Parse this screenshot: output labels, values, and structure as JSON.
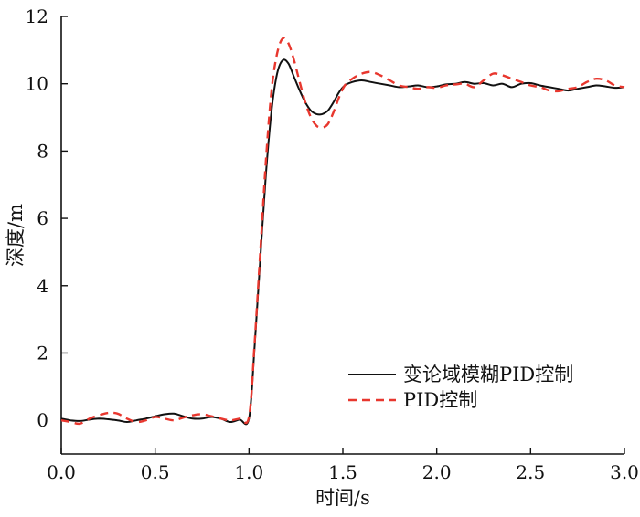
{
  "chart_data": {
    "type": "line",
    "xlabel": "时间/s",
    "ylabel": "深度/m",
    "xlim": [
      0,
      3.0
    ],
    "ylim": [
      -1,
      12
    ],
    "xticks": [
      "0.0",
      "0.5",
      "1.0",
      "1.5",
      "2.0",
      "2.5",
      "3.0"
    ],
    "yticks": [
      "0",
      "2",
      "4",
      "6",
      "8",
      "10",
      "12"
    ],
    "grid": false,
    "legend_position": "lower-right",
    "series": [
      {
        "name": "变论域模糊PID控制",
        "color": "#111111",
        "style": "solid",
        "x": [
          0.0,
          0.05,
          0.1,
          0.15,
          0.2,
          0.25,
          0.3,
          0.35,
          0.4,
          0.45,
          0.5,
          0.55,
          0.6,
          0.65,
          0.7,
          0.75,
          0.8,
          0.85,
          0.9,
          0.95,
          1.0,
          1.03,
          1.06,
          1.09,
          1.12,
          1.15,
          1.18,
          1.21,
          1.24,
          1.27,
          1.3,
          1.33,
          1.36,
          1.39,
          1.42,
          1.45,
          1.48,
          1.51,
          1.55,
          1.6,
          1.65,
          1.7,
          1.75,
          1.8,
          1.85,
          1.9,
          1.95,
          2.0,
          2.05,
          2.1,
          2.15,
          2.2,
          2.25,
          2.3,
          2.35,
          2.4,
          2.45,
          2.5,
          2.55,
          2.6,
          2.65,
          2.7,
          2.75,
          2.8,
          2.85,
          2.9,
          2.95,
          3.0
        ],
        "y": [
          0.05,
          0.0,
          -0.02,
          0.02,
          0.05,
          0.03,
          0.0,
          -0.05,
          0.0,
          0.05,
          0.12,
          0.18,
          0.2,
          0.12,
          0.05,
          0.05,
          0.1,
          0.05,
          -0.05,
          0.02,
          0.05,
          2.2,
          4.8,
          7.3,
          9.2,
          10.3,
          10.7,
          10.6,
          10.2,
          9.8,
          9.45,
          9.2,
          9.1,
          9.1,
          9.2,
          9.45,
          9.75,
          9.95,
          10.05,
          10.1,
          10.05,
          10.0,
          9.95,
          9.9,
          9.92,
          9.95,
          9.9,
          9.92,
          9.98,
          10.0,
          10.05,
          10.0,
          10.02,
          9.95,
          10.0,
          9.9,
          10.0,
          10.02,
          9.95,
          9.9,
          9.85,
          9.8,
          9.85,
          9.9,
          9.95,
          9.92,
          9.88,
          9.9
        ]
      },
      {
        "name": "PID控制",
        "color": "#e8372e",
        "style": "dashed",
        "x": [
          0.0,
          0.05,
          0.1,
          0.15,
          0.2,
          0.25,
          0.3,
          0.35,
          0.4,
          0.45,
          0.5,
          0.55,
          0.6,
          0.65,
          0.7,
          0.75,
          0.8,
          0.85,
          0.9,
          0.95,
          1.0,
          1.03,
          1.06,
          1.09,
          1.12,
          1.15,
          1.18,
          1.21,
          1.24,
          1.27,
          1.3,
          1.33,
          1.36,
          1.39,
          1.42,
          1.45,
          1.48,
          1.51,
          1.55,
          1.6,
          1.65,
          1.7,
          1.75,
          1.8,
          1.85,
          1.9,
          1.95,
          2.0,
          2.05,
          2.1,
          2.15,
          2.2,
          2.25,
          2.3,
          2.35,
          2.4,
          2.45,
          2.5,
          2.55,
          2.6,
          2.65,
          2.7,
          2.75,
          2.8,
          2.85,
          2.9,
          2.95,
          3.0
        ],
        "y": [
          0.0,
          -0.05,
          -0.1,
          0.05,
          0.15,
          0.22,
          0.2,
          0.05,
          -0.05,
          0.0,
          0.1,
          0.05,
          0.0,
          0.08,
          0.15,
          0.18,
          0.12,
          0.05,
          0.0,
          0.05,
          0.1,
          2.3,
          5.0,
          7.7,
          9.8,
          10.9,
          11.35,
          11.2,
          10.7,
          10.05,
          9.45,
          9.0,
          8.75,
          8.7,
          8.8,
          9.15,
          9.6,
          9.95,
          10.15,
          10.3,
          10.35,
          10.25,
          10.1,
          9.95,
          9.9,
          9.85,
          9.9,
          9.88,
          9.95,
          9.98,
          10.0,
          9.9,
          10.1,
          10.3,
          10.25,
          10.15,
          10.05,
          9.95,
          9.9,
          9.8,
          9.78,
          9.85,
          9.9,
          10.05,
          10.15,
          10.1,
          9.95,
          9.9
        ]
      }
    ]
  }
}
